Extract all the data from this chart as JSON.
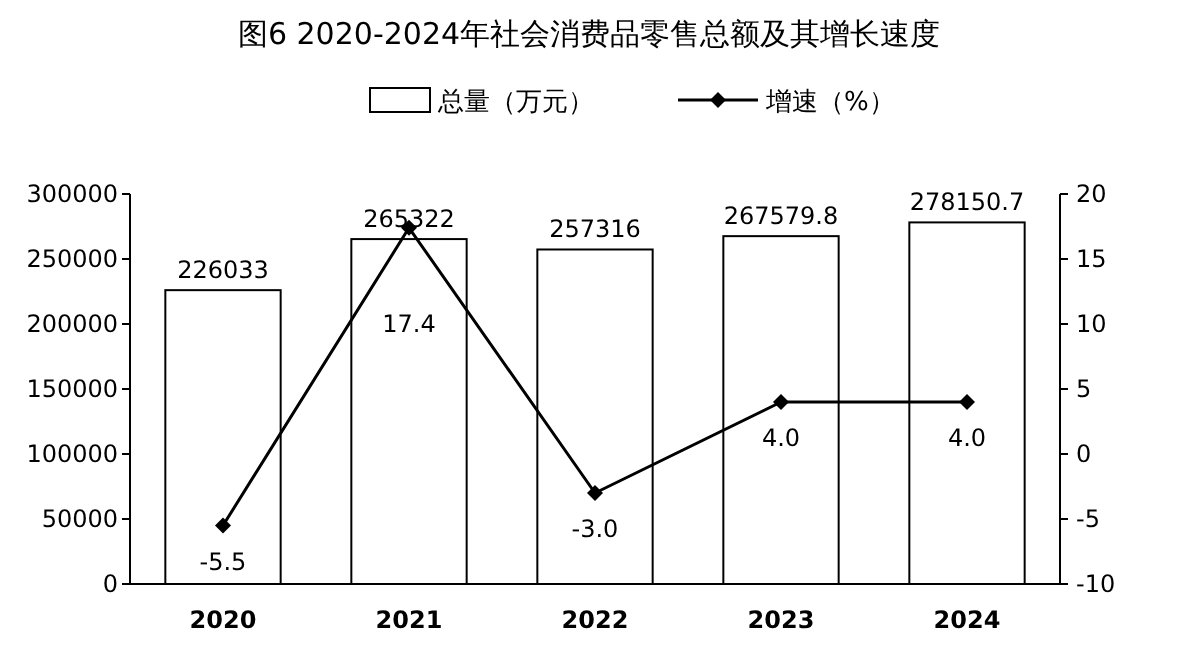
{
  "chart_data": {
    "type": "bar",
    "title": "图6 2020-2024年社会消费品零售总额及其增长速度",
    "categories": [
      "2020",
      "2021",
      "2022",
      "2023",
      "2024"
    ],
    "series": [
      {
        "name": "总量（万元）",
        "color": "#ffffff",
        "values": [
          226033,
          265322,
          257316,
          267579.8,
          278150.7
        ],
        "value_labels": [
          "226033",
          "265322",
          "257316",
          "267579.8",
          "278150.7"
        ]
      },
      {
        "name": "增速（%）",
        "type": "line",
        "axis": "y2",
        "color": "#000000",
        "marker": "diamond",
        "values": [
          -5.5,
          17.4,
          -3.0,
          4.0,
          4.0
        ],
        "value_labels": [
          "-5.5",
          "17.4",
          "-3.0",
          "4.0",
          "4.0"
        ]
      }
    ],
    "ylim": [
      0,
      300000
    ],
    "yticks": [
      0,
      50000,
      100000,
      150000,
      200000,
      250000,
      300000
    ],
    "y2lim": [
      -10,
      20
    ],
    "y2ticks": [
      -10,
      -5,
      0,
      5,
      10,
      15,
      20
    ],
    "legend": "top",
    "grid": false
  }
}
